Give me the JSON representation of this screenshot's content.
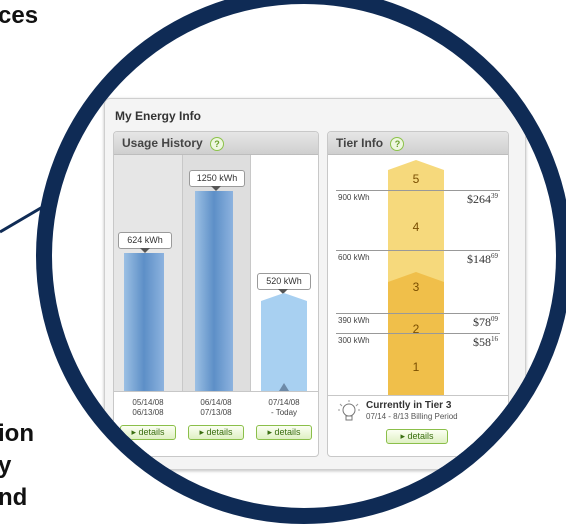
{
  "slide": {
    "text_top": "ces",
    "text_bottom": [
      "ion",
      "y",
      "nd"
    ]
  },
  "colors": {
    "circle_border": "#0f2b55",
    "usage_bar": "#5d8fc7",
    "current_bar": "#a8d0f1",
    "tier_bar": "#f0bf4a",
    "accent_green": "#8bbf4a"
  },
  "widget": {
    "title": "My Energy Info"
  },
  "usage": {
    "title": "Usage History",
    "help_icon": "?",
    "columns": [
      {
        "label": "624 kWh",
        "value_kwh": 624,
        "dates": [
          "05/14/08",
          "06/13/08"
        ],
        "button": "details"
      },
      {
        "label": "1250 kWh",
        "value_kwh": 1250,
        "dates": [
          "06/14/08",
          "07/13/08"
        ],
        "button": "details"
      },
      {
        "label": "520 kWh",
        "value_kwh": 520,
        "dates": [
          "07/14/08",
          "- Today"
        ],
        "button": "details"
      }
    ]
  },
  "tier": {
    "title": "Tier Info",
    "help_icon": "?",
    "levels": [
      {
        "kwh": "900 kWh",
        "price_main": "$264",
        "price_cents": "39"
      },
      {
        "kwh": "600 kWh",
        "price_main": "$148",
        "price_cents": "69"
      },
      {
        "kwh": "390 kWh",
        "price_main": "$78",
        "price_cents": "09"
      },
      {
        "kwh": "300 kWh",
        "price_main": "$58",
        "price_cents": "16"
      }
    ],
    "tier_numbers": [
      "5",
      "4",
      "3",
      "2",
      "1"
    ],
    "current": "Currently in Tier 3",
    "billing": "07/14 - 8/13 Billing Period",
    "button": "details",
    "icon": "lightbulb-icon"
  }
}
